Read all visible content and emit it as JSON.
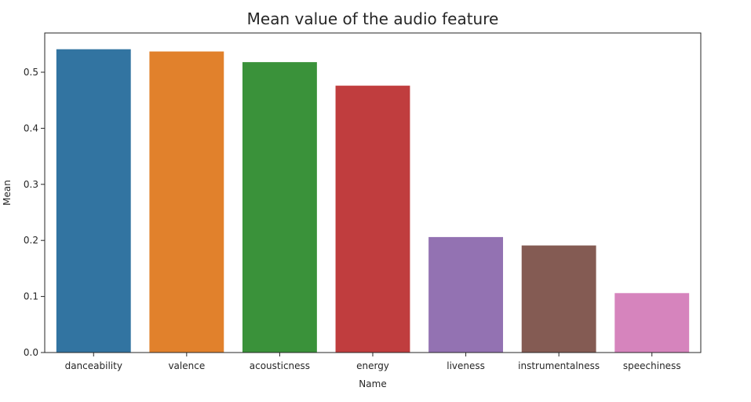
{
  "chart_data": {
    "type": "bar",
    "title": "Mean value of the audio feature",
    "xlabel": "Name",
    "ylabel": "Mean",
    "categories": [
      "danceability",
      "valence",
      "acousticness",
      "energy",
      "liveness",
      "instrumentalness",
      "speechiness"
    ],
    "values": [
      0.541,
      0.537,
      0.518,
      0.476,
      0.206,
      0.191,
      0.106
    ],
    "colors": [
      "#3274a1",
      "#e1812c",
      "#3a923a",
      "#c03d3e",
      "#9372b2",
      "#845b53",
      "#d684bd"
    ],
    "ylim": [
      0,
      0.57
    ],
    "yticks": [
      0.0,
      0.1,
      0.2,
      0.3,
      0.4,
      0.5
    ],
    "ytick_labels": [
      "0.0",
      "0.1",
      "0.2",
      "0.3",
      "0.4",
      "0.5"
    ],
    "grid": false,
    "legend": "none"
  }
}
